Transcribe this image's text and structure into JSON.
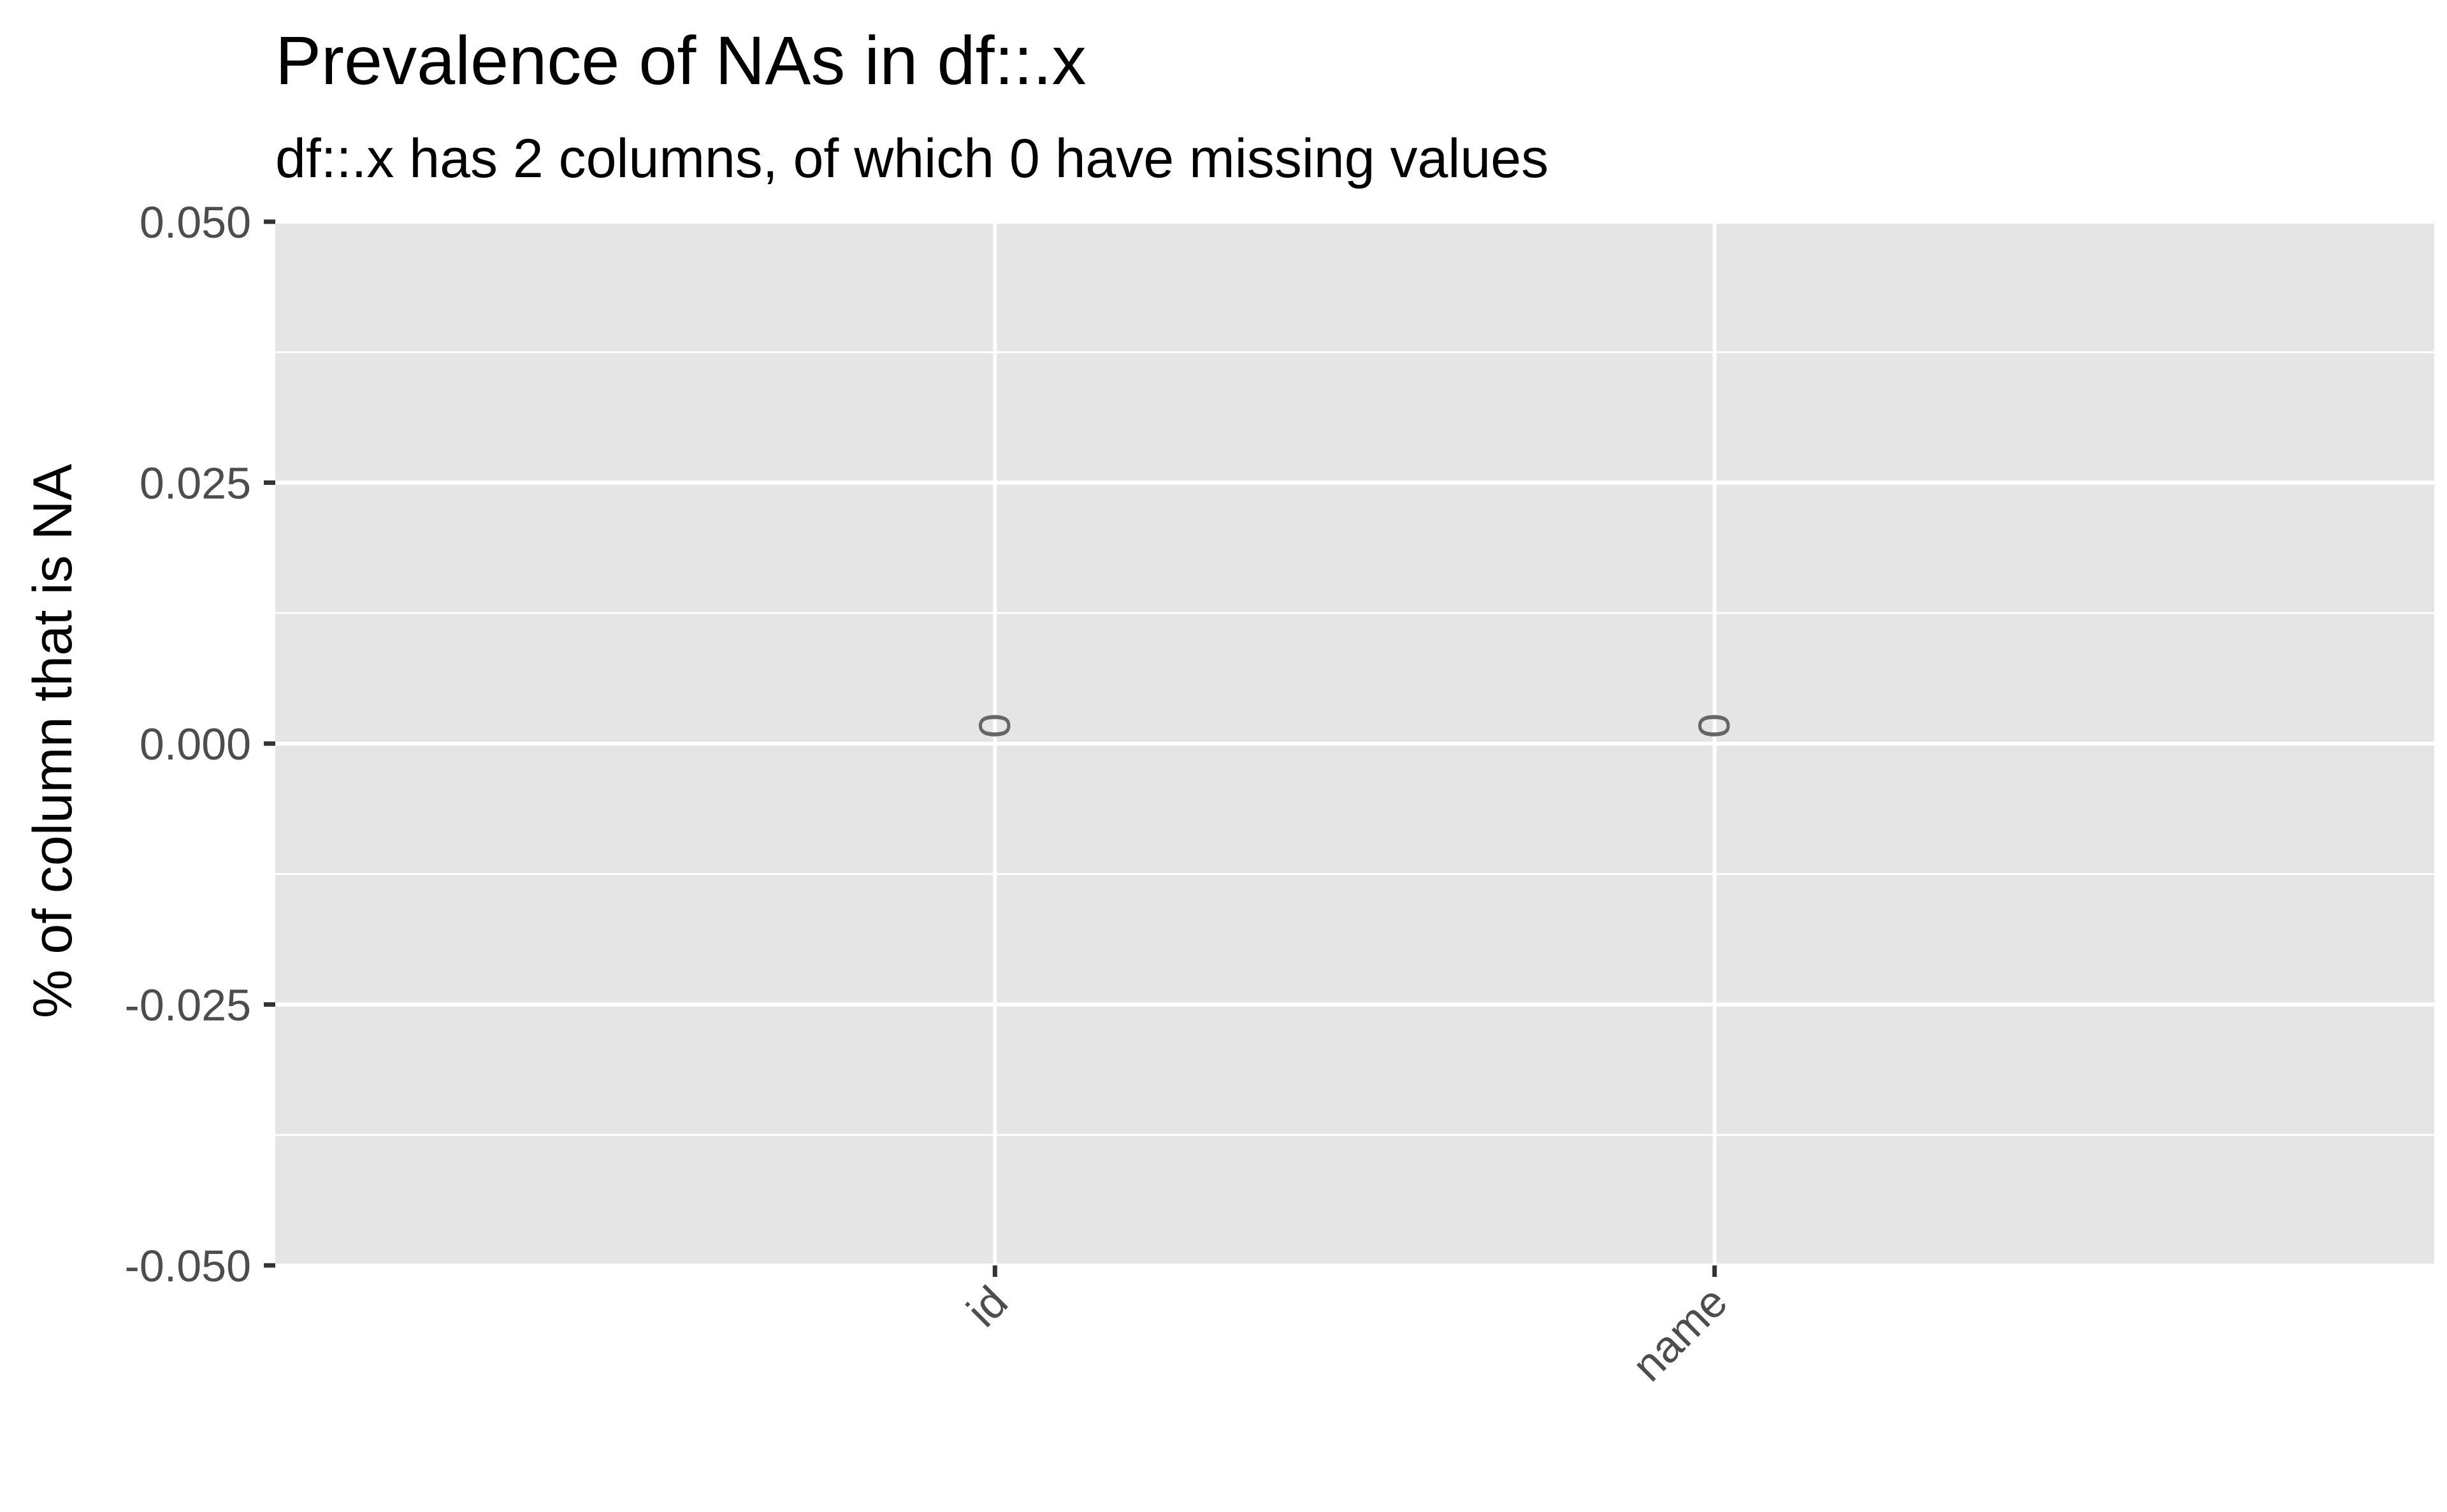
{
  "chart_data": {
    "type": "bar",
    "title": "Prevalence of NAs in df::.x",
    "subtitle": "df::.x has 2 columns, of which 0 have missing values",
    "xlabel": "",
    "ylabel": "% of column that is NA",
    "categories": [
      "id",
      "name"
    ],
    "values": [
      0,
      0
    ],
    "data_labels": [
      "0",
      "0"
    ],
    "ylim": [
      -0.05,
      0.05
    ],
    "y_ticks": [
      -0.05,
      -0.025,
      0,
      0.025,
      0.05
    ],
    "y_tick_labels": [
      "-0.050",
      "-0.025",
      "0.000",
      "0.025",
      "0.050"
    ],
    "grid": true,
    "legend": "none",
    "colors": {
      "panel_background": "#e5e5e5",
      "grid_line": "#ffffff",
      "tick_text": "#4d4d4d",
      "data_label_text": "#666666"
    }
  }
}
